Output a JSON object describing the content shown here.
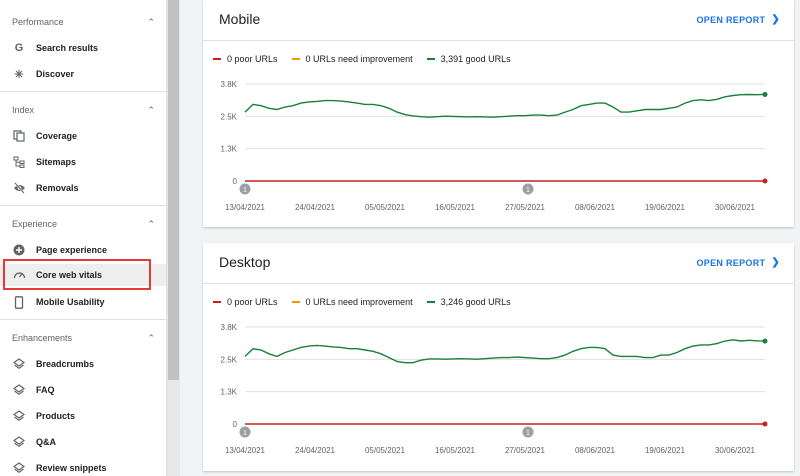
{
  "colors": {
    "poor": "#c5221f",
    "needs": "#f29900",
    "good": "#188038",
    "accent": "#1a73e8"
  },
  "sidebar": {
    "sections": [
      {
        "title": "Performance",
        "items": [
          {
            "label": "Search results",
            "icon": "google-g-icon"
          },
          {
            "label": "Discover",
            "icon": "asterisk-icon"
          }
        ]
      },
      {
        "title": "Index",
        "items": [
          {
            "label": "Coverage",
            "icon": "file-copy-icon"
          },
          {
            "label": "Sitemaps",
            "icon": "sitemap-icon"
          },
          {
            "label": "Removals",
            "icon": "eye-off-icon"
          }
        ]
      },
      {
        "title": "Experience",
        "items": [
          {
            "label": "Page experience",
            "icon": "add-circle-icon"
          },
          {
            "label": "Core web vitals",
            "icon": "speedometer-icon"
          },
          {
            "label": "Mobile Usability",
            "icon": "phone-icon"
          }
        ]
      },
      {
        "title": "Enhancements",
        "items": [
          {
            "label": "Breadcrumbs",
            "icon": "layers-icon"
          },
          {
            "label": "FAQ",
            "icon": "layers-icon"
          },
          {
            "label": "Products",
            "icon": "layers-icon"
          },
          {
            "label": "Q&A",
            "icon": "layers-icon"
          },
          {
            "label": "Review snippets",
            "icon": "layers-icon"
          }
        ]
      }
    ]
  },
  "cards": [
    {
      "title": "Mobile",
      "open_report": "OPEN REPORT",
      "legend": [
        "0 poor URLs",
        "0 URLs need improvement",
        "3,391 good URLs"
      ],
      "chart_data": {
        "type": "line",
        "ylim": [
          0,
          3800
        ],
        "yticks": [
          "0",
          "1.3K",
          "2.5K",
          "3.8K"
        ],
        "xticks": [
          "13/04/2021",
          "24/04/2021",
          "05/05/2021",
          "16/05/2021",
          "27/05/2021",
          "08/06/2021",
          "19/06/2021",
          "30/06/2021"
        ],
        "annotations": [
          "1",
          "1"
        ],
        "series": [
          {
            "name": "good",
            "values": [
              2700,
              3000,
              2950,
              2850,
              2800,
              2900,
              2950,
              3050,
              3100,
              3120,
              3150,
              3150,
              3130,
              3100,
              3050,
              3000,
              3000,
              2950,
              2850,
              2700,
              2600,
              2550,
              2520,
              2500,
              2520,
              2540,
              2530,
              2520,
              2510,
              2520,
              2510,
              2500,
              2520,
              2540,
              2560,
              2560,
              2580,
              2580,
              2560,
              2580,
              2700,
              2800,
              2950,
              3000,
              3050,
              3050,
              2900,
              2700,
              2700,
              2750,
              2800,
              2800,
              2800,
              2850,
              2900,
              3050,
              3150,
              3180,
              3150,
              3200,
              3300,
              3350,
              3380,
              3390,
              3380,
              3391
            ]
          },
          {
            "name": "poor",
            "values": [
              0,
              0
            ]
          }
        ]
      }
    },
    {
      "title": "Desktop",
      "open_report": "OPEN REPORT",
      "legend": [
        "0 poor URLs",
        "0 URLs need improvement",
        "3,246 good URLs"
      ],
      "chart_data": {
        "type": "line",
        "ylim": [
          0,
          3800
        ],
        "yticks": [
          "0",
          "1.3K",
          "2.5K",
          "3.8K"
        ],
        "xticks": [
          "13/04/2021",
          "24/04/2021",
          "05/05/2021",
          "16/05/2021",
          "27/05/2021",
          "08/06/2021",
          "19/06/2021",
          "30/06/2021"
        ],
        "annotations": [
          "1",
          "1"
        ],
        "series": [
          {
            "name": "good",
            "values": [
              2650,
              2950,
              2900,
              2750,
              2650,
              2800,
              2900,
              3000,
              3050,
              3080,
              3050,
              3020,
              3000,
              2950,
              2950,
              2900,
              2850,
              2750,
              2600,
              2450,
              2400,
              2400,
              2500,
              2550,
              2550,
              2540,
              2550,
              2560,
              2550,
              2540,
              2560,
              2580,
              2600,
              2600,
              2620,
              2600,
              2580,
              2560,
              2560,
              2600,
              2700,
              2850,
              2950,
              3000,
              3000,
              2950,
              2700,
              2650,
              2650,
              2650,
              2600,
              2600,
              2700,
              2700,
              2800,
              2950,
              3050,
              3100,
              3100,
              3150,
              3250,
              3300,
              3250,
              3280,
              3260,
              3246
            ]
          },
          {
            "name": "poor",
            "values": [
              0,
              0
            ]
          }
        ]
      }
    }
  ]
}
